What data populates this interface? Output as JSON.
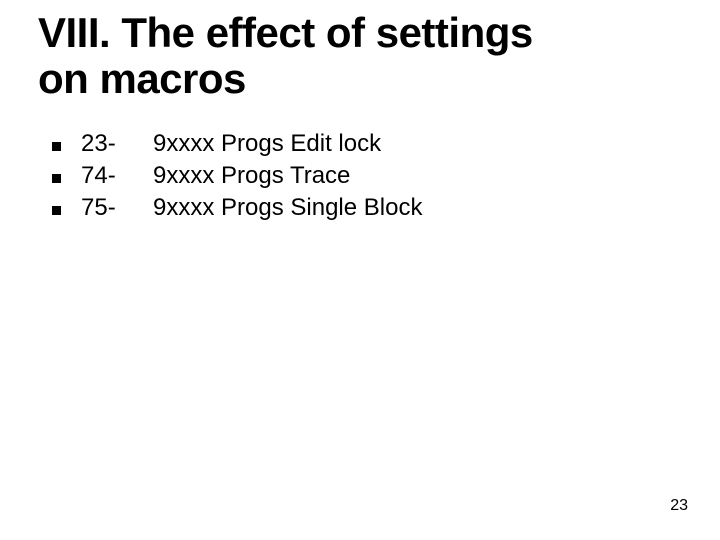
{
  "title_line1": "VIII. The effect of settings",
  "title_line2": "on macros",
  "items": [
    {
      "code": "23-",
      "desc": "9xxxx Progs Edit lock"
    },
    {
      "code": "74-",
      "desc": "9xxxx Progs Trace"
    },
    {
      "code": "75-",
      "desc": "9xxxx Progs Single Block"
    }
  ],
  "page_number": "23",
  "colors": {
    "background": "#ffffff",
    "text": "#000000",
    "bullet": "#000000"
  },
  "typography": {
    "title_fontsize": 42,
    "body_fontsize": 24,
    "pagenum_fontsize": 16
  }
}
